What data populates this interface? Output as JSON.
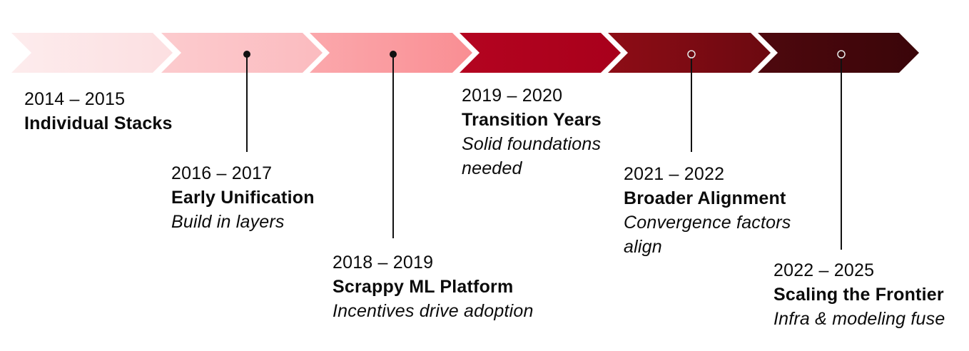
{
  "timeline": {
    "segment_colors": [
      "#fde6e7",
      "#fcc2c5",
      "#fb9a9f",
      "#b8001f",
      "#7a0b13",
      "#3d060b"
    ],
    "segment_gradients": [
      [
        "#fdeced",
        "#fcdfe1"
      ],
      [
        "#fccbce",
        "#fbbbbf"
      ],
      [
        "#fba8ac",
        "#f98e93"
      ],
      [
        "#b40420",
        "#a8001b"
      ],
      [
        "#8e0d16",
        "#6b0910"
      ],
      [
        "#4e080e",
        "#3a0509"
      ]
    ],
    "milestones": [
      {
        "years": "2014 – 2015",
        "title": "Individual Stacks",
        "desc": []
      },
      {
        "years": "2016 – 2017",
        "title": "Early Unification",
        "desc": [
          "Build in layers"
        ]
      },
      {
        "years": "2018 – 2019",
        "title": "Scrappy ML Platform",
        "desc": [
          "Incentives drive adoption"
        ]
      },
      {
        "years": "2019 – 2020",
        "title": "Transition Years",
        "desc": [
          "Solid foundations",
          "needed"
        ]
      },
      {
        "years": "2021 – 2022",
        "title": "Broader Alignment",
        "desc": [
          "Convergence factors",
          "align"
        ]
      },
      {
        "years": "2022 – 2025",
        "title": "Scaling the Frontier",
        "desc": [
          "Infra & modeling fuse"
        ]
      }
    ]
  }
}
